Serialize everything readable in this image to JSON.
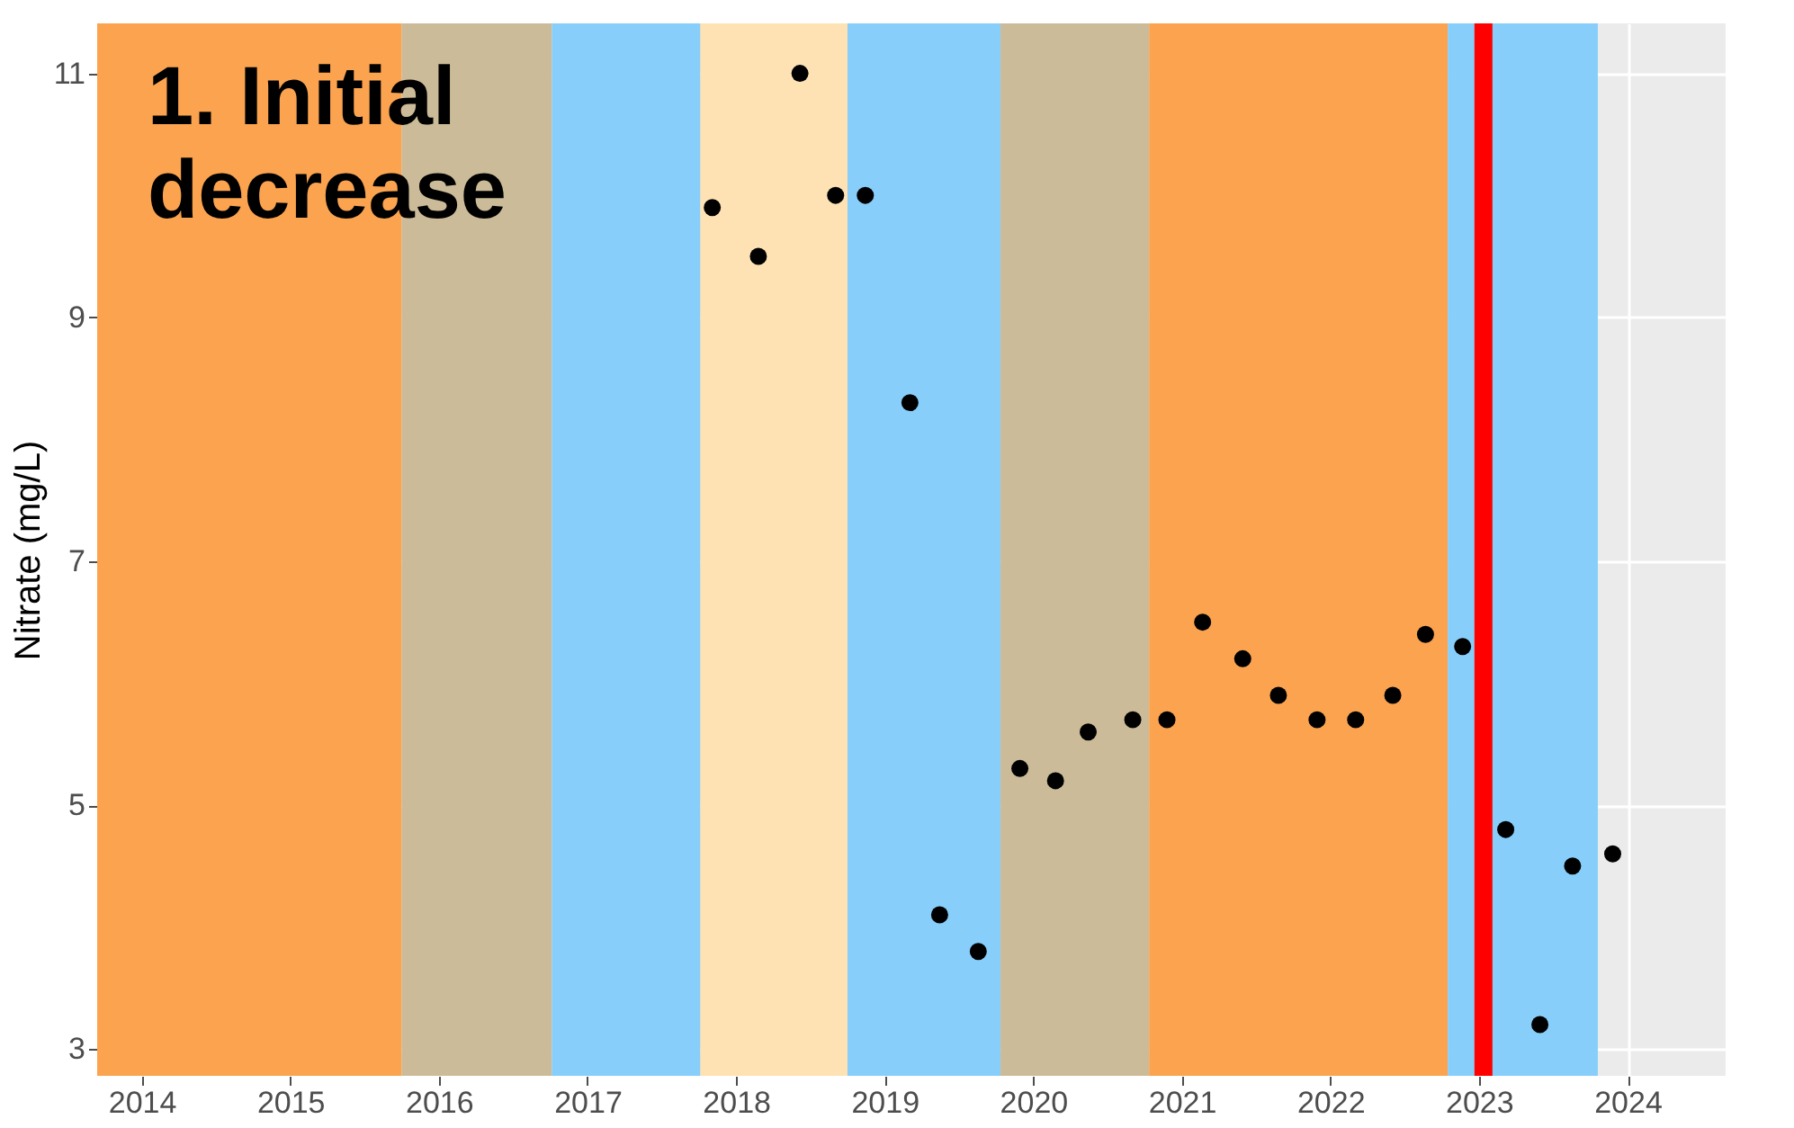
{
  "chart_data": {
    "type": "scatter",
    "ylabel": "Nitrate (mg/L)",
    "annotations": [
      "1. Initial\ndecrease"
    ],
    "x": [
      2017.84,
      2018.15,
      2018.43,
      2018.67,
      2018.87,
      2019.17,
      2019.37,
      2019.63,
      2019.91,
      2020.15,
      2020.37,
      2020.67,
      2020.9,
      2021.14,
      2021.41,
      2021.65,
      2021.91,
      2022.17,
      2022.42,
      2022.64,
      2022.89,
      2023.18,
      2023.41,
      2023.63,
      2023.9
    ],
    "series": [
      {
        "color": "#000000",
        "values": [
          9.9,
          9.5,
          11.0,
          10.0,
          10.0,
          8.3,
          4.1,
          3.8,
          5.3,
          5.2,
          5.6,
          5.7,
          5.7,
          6.5,
          6.2,
          5.9,
          5.7,
          5.7,
          5.9,
          6.4,
          6.3,
          4.8,
          3.2,
          4.5,
          4.6
        ]
      }
    ],
    "xlim": [
      2013.7,
      2024.66
    ],
    "xticks": [
      2014,
      2015,
      2016,
      2017,
      2018,
      2019,
      2020,
      2021,
      2022,
      2023,
      2024
    ],
    "ylim": [
      2.78,
      11.41
    ],
    "yticks": [
      3,
      5,
      7,
      9,
      11
    ],
    "bands": [
      {
        "axis": "x",
        "from": 2013.7,
        "to": 2015.75,
        "color": "#fba34f"
      },
      {
        "axis": "x",
        "from": 2015.75,
        "to": 2016.76,
        "color": "#cbbb98"
      },
      {
        "axis": "x",
        "from": 2016.76,
        "to": 2017.76,
        "color": "#87cefa"
      },
      {
        "axis": "x",
        "from": 2017.76,
        "to": 2018.75,
        "color": "#fee2b3"
      },
      {
        "axis": "x",
        "from": 2018.75,
        "to": 2019.78,
        "color": "#87cefa"
      },
      {
        "axis": "x",
        "from": 2019.78,
        "to": 2020.78,
        "color": "#cbbb98"
      },
      {
        "axis": "x",
        "from": 2020.78,
        "to": 2022.79,
        "color": "#fba34f"
      },
      {
        "axis": "x",
        "from": 2022.79,
        "to": 2023.8,
        "color": "#87cefa"
      }
    ],
    "ref_lines": [
      {
        "axis": "x",
        "value": 2023.03,
        "color": "#ff0000"
      }
    ],
    "grid": true,
    "marker": "circle"
  }
}
